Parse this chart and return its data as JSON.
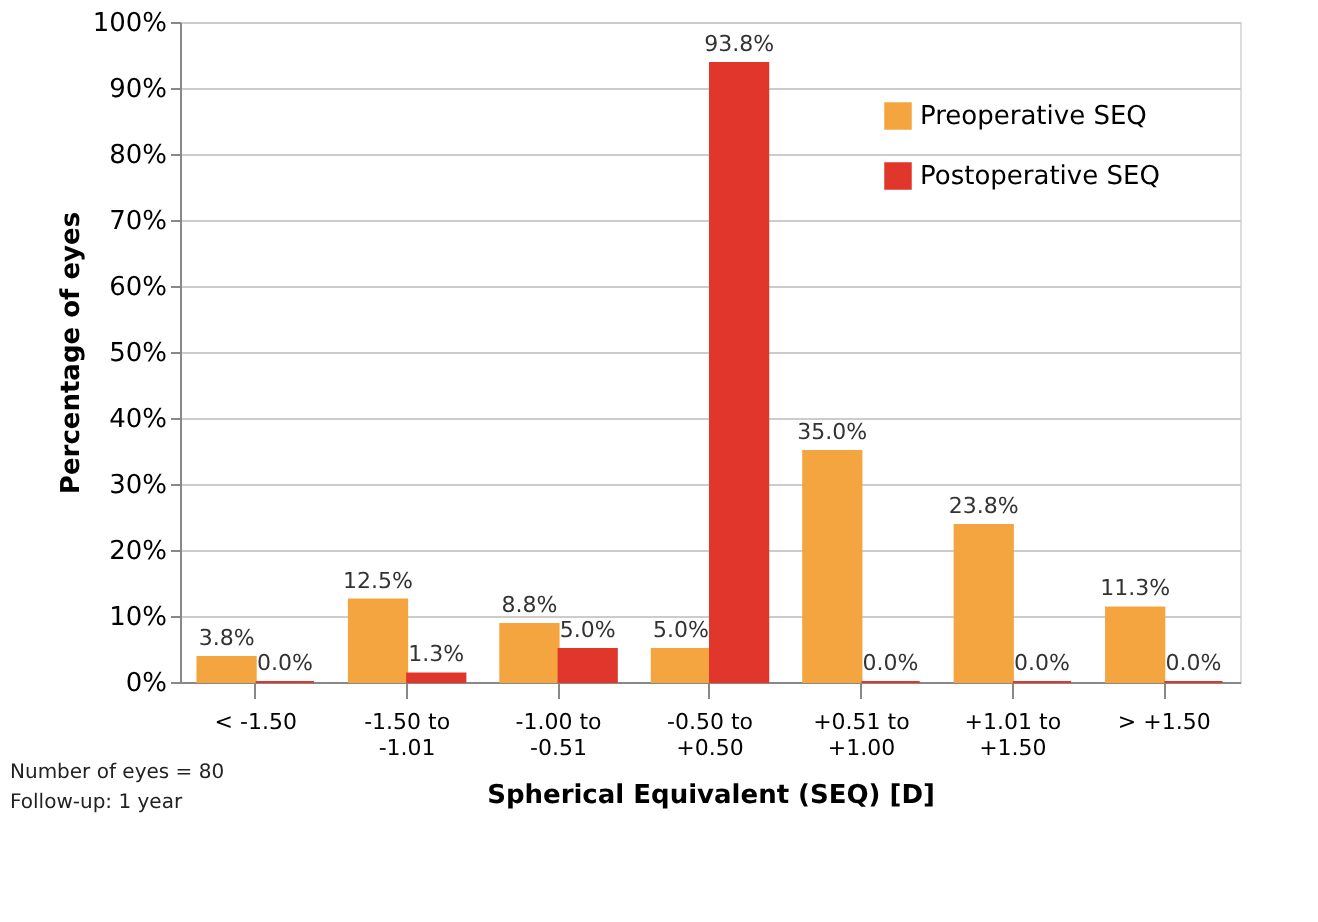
{
  "chart_data": {
    "type": "bar",
    "xlabel": "Spherical Equivalent (SEQ) [D]",
    "ylabel": "Percentage of eyes",
    "categories": [
      "< -1.50",
      "-1.50 to -1.01",
      "-1.00 to -0.51",
      "-0.50 to +0.50",
      "+0.51 to +1.00",
      "+1.01 to +1.50",
      "> +1.50"
    ],
    "series": [
      {
        "name": "Preoperative SEQ",
        "color": "#f4a53f",
        "values": [
          3.8,
          12.5,
          8.8,
          5.0,
          35.0,
          23.8,
          11.3
        ],
        "value_labels": [
          "3.8%",
          "12.5%",
          "8.8%",
          "5.0%",
          "35.0%",
          "23.8%",
          "11.3%"
        ]
      },
      {
        "name": "Postoperative SEQ",
        "color": "#e0362b",
        "values": [
          0.0,
          1.3,
          5.0,
          93.8,
          0.0,
          0.0,
          0.0
        ],
        "value_labels": [
          "0.0%",
          "1.3%",
          "5.0%",
          "93.8%",
          "0.0%",
          "0.0%",
          "0.0%"
        ]
      }
    ],
    "ylim": [
      0,
      100
    ],
    "yticks": [
      {
        "value": 0,
        "label": "0%"
      },
      {
        "value": 10,
        "label": "10%"
      },
      {
        "value": 20,
        "label": "20%"
      },
      {
        "value": 30,
        "label": "30%"
      },
      {
        "value": 40,
        "label": "40%"
      },
      {
        "value": 50,
        "label": "50%"
      },
      {
        "value": 60,
        "label": "60%"
      },
      {
        "value": 70,
        "label": "70%"
      },
      {
        "value": 80,
        "label": "80%"
      },
      {
        "value": 90,
        "label": "90%"
      },
      {
        "value": 100,
        "label": "100%"
      }
    ],
    "grid": "y",
    "legend": "top right",
    "annotations": [
      "Number of eyes = 80",
      "Follow-up: 1 year"
    ]
  }
}
